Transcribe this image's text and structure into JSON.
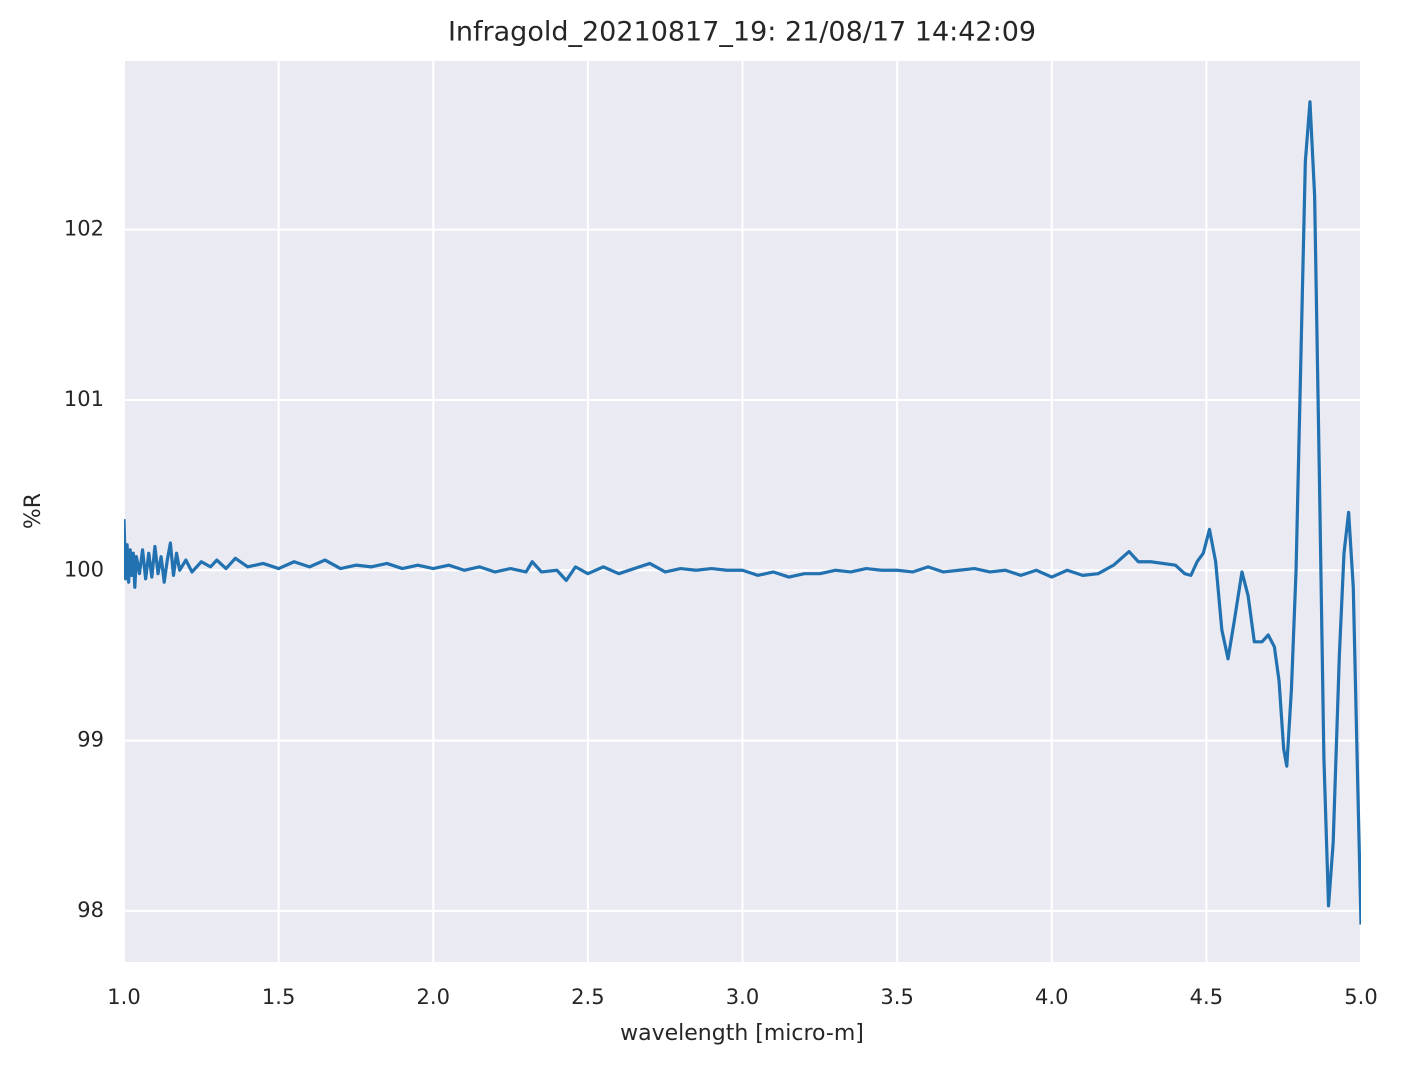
{
  "chart_data": {
    "type": "line",
    "title": "Infragold_20210817_19:  21/08/17 14:42:09",
    "x_label": "wavelength [micro-m]",
    "y_label": "%R",
    "grid": true,
    "xlim": [
      1.0,
      5.0
    ],
    "ylim": [
      97.7,
      102.99
    ],
    "xticks": [
      {
        "value": 1,
        "label": "1.0"
      },
      1.5,
      {
        "value": 2,
        "label": "2.0"
      },
      2.5,
      {
        "value": 3,
        "label": "3.0"
      },
      3.5,
      {
        "value": 4,
        "label": "4.0"
      },
      4.5,
      {
        "value": 5,
        "label": "5.0"
      }
    ],
    "yticks": [
      98,
      99,
      100,
      101,
      102
    ],
    "series": [
      {
        "color": "#2271b1",
        "x": [
          1.0,
          1.005,
          1.01,
          1.015,
          1.02,
          1.025,
          1.03,
          1.035,
          1.04,
          1.05,
          1.06,
          1.07,
          1.08,
          1.09,
          1.1,
          1.11,
          1.12,
          1.13,
          1.14,
          1.15,
          1.16,
          1.17,
          1.18,
          1.2,
          1.22,
          1.25,
          1.28,
          1.3,
          1.33,
          1.36,
          1.4,
          1.45,
          1.5,
          1.55,
          1.6,
          1.65,
          1.7,
          1.75,
          1.8,
          1.85,
          1.9,
          1.95,
          2.0,
          2.05,
          2.1,
          2.15,
          2.2,
          2.25,
          2.3,
          2.32,
          2.35,
          2.4,
          2.43,
          2.46,
          2.5,
          2.55,
          2.6,
          2.65,
          2.7,
          2.75,
          2.8,
          2.85,
          2.9,
          2.95,
          3.0,
          3.05,
          3.1,
          3.15,
          3.2,
          3.25,
          3.3,
          3.35,
          3.4,
          3.45,
          3.5,
          3.55,
          3.6,
          3.65,
          3.7,
          3.75,
          3.8,
          3.85,
          3.9,
          3.95,
          4.0,
          4.05,
          4.1,
          4.15,
          4.2,
          4.25,
          4.28,
          4.32,
          4.36,
          4.4,
          4.43,
          4.45,
          4.47,
          4.49,
          4.51,
          4.53,
          4.55,
          4.57,
          4.59,
          4.615,
          4.635,
          4.655,
          4.68,
          4.7,
          4.72,
          4.735,
          4.75,
          4.76,
          4.775,
          4.79,
          4.805,
          4.82,
          4.835,
          4.85,
          4.865,
          4.88,
          4.895,
          4.91,
          4.93,
          4.945,
          4.96,
          4.975,
          4.99,
          5.0
        ],
        "values": [
          100.3,
          99.95,
          100.15,
          99.93,
          100.12,
          99.97,
          100.1,
          99.9,
          100.08,
          99.98,
          100.12,
          99.95,
          100.1,
          99.96,
          100.14,
          99.98,
          100.08,
          99.93,
          100.06,
          100.16,
          99.97,
          100.1,
          100.0,
          100.06,
          99.99,
          100.05,
          100.02,
          100.06,
          100.01,
          100.07,
          100.02,
          100.04,
          100.01,
          100.05,
          100.02,
          100.06,
          100.01,
          100.03,
          100.02,
          100.04,
          100.01,
          100.03,
          100.01,
          100.03,
          100.0,
          100.02,
          99.99,
          100.01,
          99.99,
          100.05,
          99.99,
          100.0,
          99.94,
          100.02,
          99.98,
          100.02,
          99.98,
          100.01,
          100.04,
          99.99,
          100.01,
          100.0,
          100.01,
          100.0,
          100.0,
          99.97,
          99.99,
          99.96,
          99.98,
          99.98,
          100.0,
          99.99,
          100.01,
          100.0,
          100.0,
          99.99,
          100.02,
          99.99,
          100.0,
          100.01,
          99.99,
          100.0,
          99.97,
          100.0,
          99.96,
          100.0,
          99.97,
          99.98,
          100.03,
          100.11,
          100.05,
          100.05,
          100.04,
          100.03,
          99.98,
          99.97,
          100.05,
          100.1,
          100.24,
          100.05,
          99.65,
          99.48,
          99.7,
          99.99,
          99.85,
          99.58,
          99.58,
          99.62,
          99.55,
          99.35,
          98.95,
          98.85,
          99.3,
          100.0,
          101.2,
          102.4,
          102.75,
          102.2,
          100.6,
          98.9,
          98.03,
          98.4,
          99.5,
          100.1,
          100.34,
          99.9,
          98.7,
          97.92
        ]
      }
    ]
  }
}
